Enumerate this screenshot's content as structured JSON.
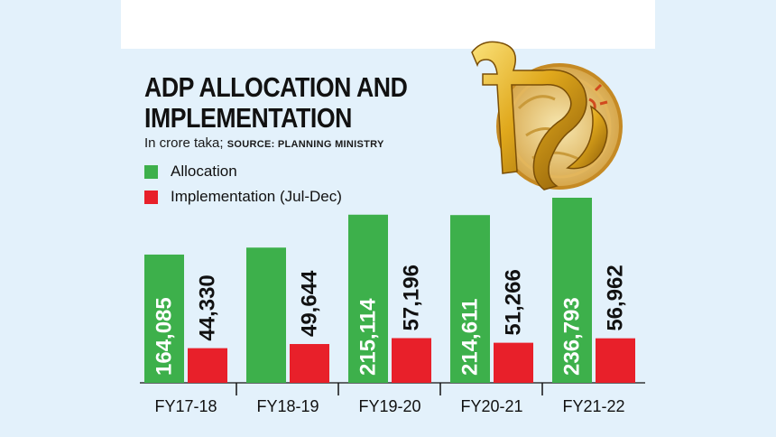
{
  "chart_data": {
    "type": "bar",
    "title_line1": "ADP ALLOCATION AND",
    "title_line2": "IMPLEMENTATION",
    "subtitle_unit": "In crore taka;",
    "subtitle_source": "SOURCE: PLANNING MINISTRY",
    "categories": [
      "FY17-18",
      "FY18-19",
      "FY19-20",
      "FY20-21",
      "FY21-22"
    ],
    "series": [
      {
        "name": "Allocation",
        "color": "#3db04b",
        "values": [
          164085,
          173000,
          215114,
          214611,
          236793
        ],
        "labels": [
          "164,085",
          "",
          "215,114",
          "214,611",
          "236,793"
        ]
      },
      {
        "name": "Implementation (Jul-Dec)",
        "color": "#e8202a",
        "values": [
          44330,
          49644,
          57196,
          51266,
          56962
        ],
        "labels": [
          "44,330",
          "49,644",
          "57,196",
          "51,266",
          "56,962"
        ]
      }
    ],
    "ylim": [
      0,
      236793
    ],
    "legend_position": "top-left",
    "grid": false
  },
  "icons": {
    "logo": "taka-sign-emblem-icon"
  }
}
